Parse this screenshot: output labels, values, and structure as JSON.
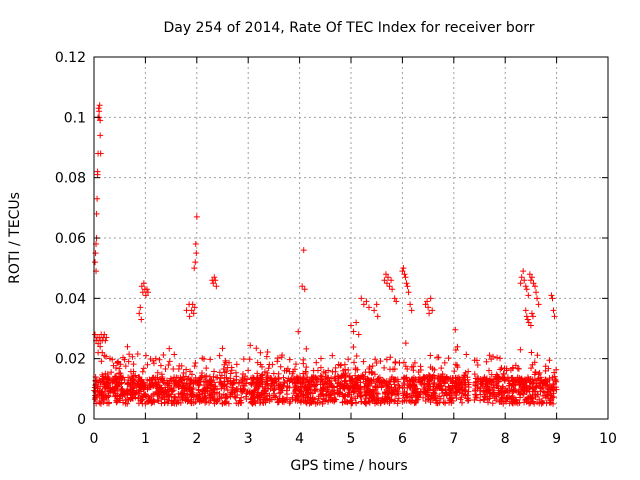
{
  "chart_data": {
    "type": "scatter",
    "title": "Day 254 of 2014, Rate Of TEC Index for receiver borr",
    "xlabel": "GPS time / hours",
    "ylabel": "ROTI / TECUs",
    "xlim": [
      0,
      10
    ],
    "ylim": [
      0,
      0.12
    ],
    "xticks": [
      "0",
      "1",
      "2",
      "3",
      "4",
      "5",
      "6",
      "7",
      "8",
      "9",
      "10"
    ],
    "yticks": [
      "0",
      "0.02",
      "0.04",
      "0.06",
      "0.08",
      "0.1",
      "0.12"
    ],
    "grid": true,
    "marker": "+",
    "color": "#ff0000",
    "series": [
      {
        "name": "ROTI",
        "points": [
          [
            0.02,
            0.052
          ],
          [
            0.03,
            0.055
          ],
          [
            0.04,
            0.049
          ],
          [
            0.04,
            0.058
          ],
          [
            0.05,
            0.06
          ],
          [
            0.05,
            0.068
          ],
          [
            0.06,
            0.073
          ],
          [
            0.07,
            0.081
          ],
          [
            0.07,
            0.082
          ],
          [
            0.08,
            0.088
          ],
          [
            0.08,
            0.1
          ],
          [
            0.09,
            0.103
          ],
          [
            0.1,
            0.102
          ],
          [
            0.11,
            0.104
          ],
          [
            0.12,
            0.099
          ],
          [
            0.12,
            0.094
          ],
          [
            0.13,
            0.088
          ],
          [
            0.1,
            0.1
          ],
          [
            0.02,
            0.028
          ],
          [
            0.04,
            0.026
          ],
          [
            0.06,
            0.027
          ],
          [
            0.08,
            0.025
          ],
          [
            0.1,
            0.027
          ],
          [
            0.12,
            0.026
          ],
          [
            0.14,
            0.028
          ],
          [
            0.16,
            0.026
          ],
          [
            0.18,
            0.027
          ],
          [
            0.2,
            0.028
          ],
          [
            0.22,
            0.026
          ],
          [
            0.24,
            0.027
          ],
          [
            0.08,
            0.022
          ],
          [
            0.12,
            0.024
          ],
          [
            0.16,
            0.022
          ],
          [
            0.2,
            0.021
          ],
          [
            0.93,
            0.044
          ],
          [
            0.95,
            0.042
          ],
          [
            0.97,
            0.045
          ],
          [
            0.99,
            0.043
          ],
          [
            1.01,
            0.041
          ],
          [
            1.03,
            0.043
          ],
          [
            1.05,
            0.042
          ],
          [
            0.88,
            0.035
          ],
          [
            0.9,
            0.037
          ],
          [
            0.92,
            0.033
          ],
          [
            1.9,
            0.036
          ],
          [
            1.92,
            0.038
          ],
          [
            1.94,
            0.035
          ],
          [
            1.96,
            0.037
          ],
          [
            1.98,
            0.058
          ],
          [
            1.99,
            0.055
          ],
          [
            2.0,
            0.067
          ],
          [
            1.97,
            0.052
          ],
          [
            1.95,
            0.05
          ],
          [
            1.85,
            0.038
          ],
          [
            1.8,
            0.036
          ],
          [
            1.86,
            0.034
          ],
          [
            2.3,
            0.046
          ],
          [
            2.32,
            0.045
          ],
          [
            2.34,
            0.047
          ],
          [
            2.36,
            0.046
          ],
          [
            2.38,
            0.044
          ],
          [
            4.08,
            0.056
          ],
          [
            4.05,
            0.044
          ],
          [
            4.1,
            0.043
          ],
          [
            5.0,
            0.031
          ],
          [
            5.05,
            0.029
          ],
          [
            5.1,
            0.032
          ],
          [
            5.15,
            0.028
          ],
          [
            5.2,
            0.04
          ],
          [
            5.25,
            0.038
          ],
          [
            5.3,
            0.039
          ],
          [
            5.35,
            0.037
          ],
          [
            5.45,
            0.036
          ],
          [
            5.5,
            0.038
          ],
          [
            5.52,
            0.034
          ],
          [
            5.65,
            0.046
          ],
          [
            5.68,
            0.048
          ],
          [
            5.7,
            0.045
          ],
          [
            5.72,
            0.047
          ],
          [
            5.75,
            0.044
          ],
          [
            5.78,
            0.046
          ],
          [
            5.8,
            0.043
          ],
          [
            5.85,
            0.04
          ],
          [
            5.88,
            0.039
          ],
          [
            6.0,
            0.049
          ],
          [
            6.02,
            0.05
          ],
          [
            6.04,
            0.048
          ],
          [
            6.06,
            0.047
          ],
          [
            6.08,
            0.045
          ],
          [
            6.1,
            0.044
          ],
          [
            6.12,
            0.042
          ],
          [
            6.15,
            0.038
          ],
          [
            6.18,
            0.036
          ],
          [
            6.45,
            0.038
          ],
          [
            6.48,
            0.039
          ],
          [
            6.5,
            0.037
          ],
          [
            6.52,
            0.035
          ],
          [
            6.55,
            0.04
          ],
          [
            6.58,
            0.036
          ],
          [
            8.3,
            0.045
          ],
          [
            8.32,
            0.047
          ],
          [
            8.35,
            0.049
          ],
          [
            8.37,
            0.046
          ],
          [
            8.4,
            0.044
          ],
          [
            8.42,
            0.043
          ],
          [
            8.45,
            0.041
          ],
          [
            8.48,
            0.048
          ],
          [
            8.5,
            0.046
          ],
          [
            8.52,
            0.047
          ],
          [
            8.55,
            0.045
          ],
          [
            8.58,
            0.044
          ],
          [
            8.6,
            0.042
          ],
          [
            8.62,
            0.04
          ],
          [
            8.65,
            0.038
          ],
          [
            8.4,
            0.036
          ],
          [
            8.42,
            0.034
          ],
          [
            8.44,
            0.033
          ],
          [
            8.46,
            0.032
          ],
          [
            8.5,
            0.031
          ],
          [
            8.52,
            0.035
          ],
          [
            8.54,
            0.034
          ],
          [
            8.9,
            0.041
          ],
          [
            8.92,
            0.04
          ],
          [
            8.94,
            0.036
          ],
          [
            8.96,
            0.034
          ]
        ]
      }
    ]
  }
}
